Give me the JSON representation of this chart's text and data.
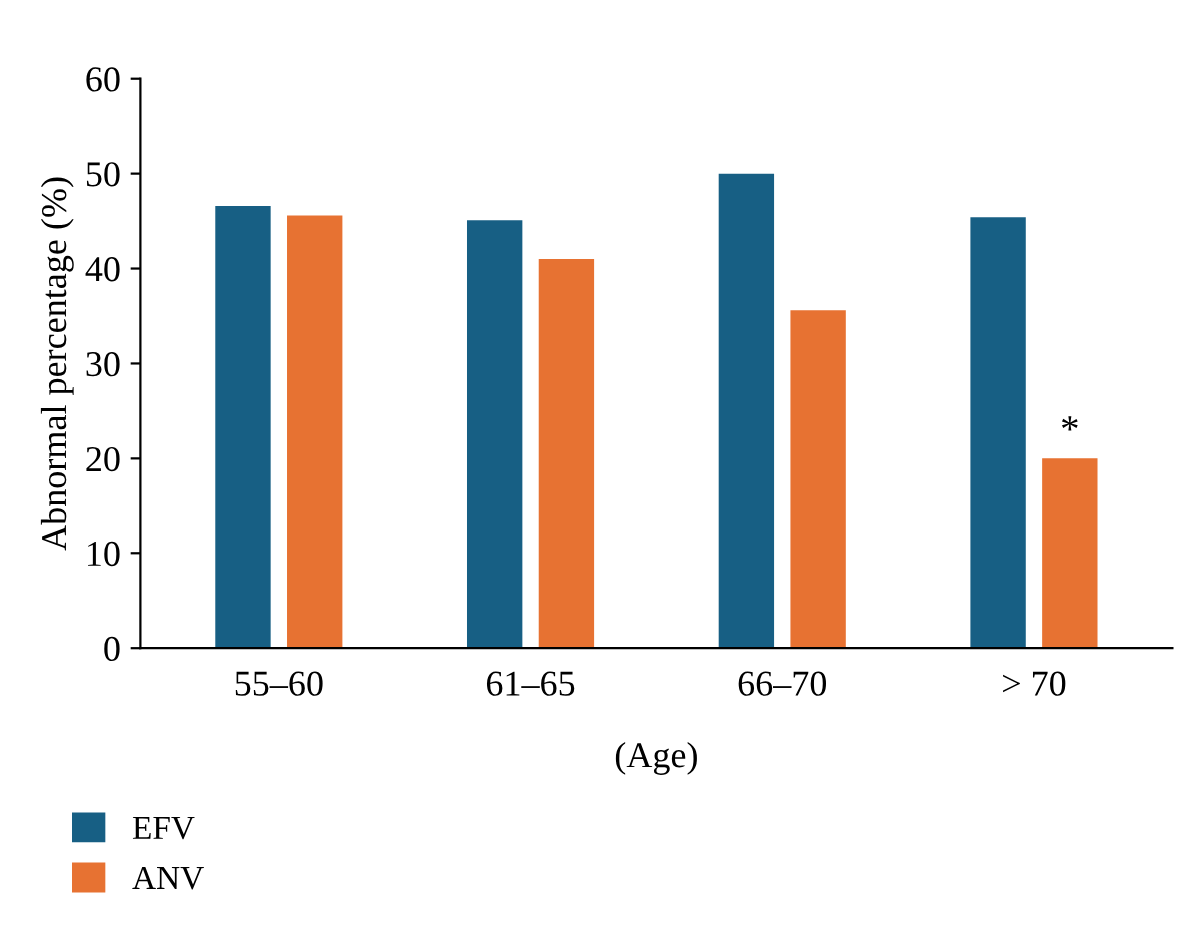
{
  "chart_data": {
    "type": "bar",
    "xlabel": "(Age)",
    "ylabel": "Abnormal percentage (%)",
    "categories": [
      "55–60",
      "61–65",
      "66–70",
      "> 70"
    ],
    "series": [
      {
        "name": "EFV",
        "color": "#175f84",
        "values": [
          46.6,
          45.1,
          50.0,
          45.4
        ]
      },
      {
        "name": "ANV",
        "color": "#e77232",
        "values": [
          45.6,
          41.0,
          35.6,
          20.0
        ]
      }
    ],
    "ylim": [
      0,
      60
    ],
    "yticks": [
      0,
      10,
      20,
      30,
      40,
      50,
      60
    ],
    "grid": false,
    "legend": "bottom left",
    "annotations": [
      {
        "text": "*",
        "x": "> 70",
        "y": 20.0
      }
    ]
  }
}
